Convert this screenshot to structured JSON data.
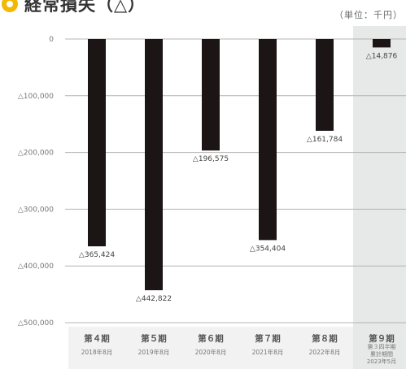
{
  "title": "経常損失（△）",
  "unit": "（単位：千円）",
  "chart_data": {
    "type": "bar",
    "title": "経常損失（△）",
    "unit": "（単位：千円）",
    "ylim": [
      -500000,
      0
    ],
    "yticks": [
      {
        "value": 0,
        "label": "0"
      },
      {
        "value": -100000,
        "label": "△100,000"
      },
      {
        "value": -200000,
        "label": "△200,000"
      },
      {
        "value": -300000,
        "label": "△300,000"
      },
      {
        "value": -400000,
        "label": "△400,000"
      },
      {
        "value": -500000,
        "label": "△500,000"
      }
    ],
    "categories": [
      {
        "label": "第４期",
        "sub": [
          "2018年8月"
        ]
      },
      {
        "label": "第５期",
        "sub": [
          "2019年8月"
        ]
      },
      {
        "label": "第６期",
        "sub": [
          "2020年8月"
        ]
      },
      {
        "label": "第７期",
        "sub": [
          "2021年8月"
        ]
      },
      {
        "label": "第８期",
        "sub": [
          "2022年8月"
        ]
      },
      {
        "label": "第９期",
        "sub": [
          "第３四半期",
          "累計期間",
          "2023年5月"
        ]
      }
    ],
    "values": [
      -365424,
      -442822,
      -196575,
      -354404,
      -161784,
      -14876
    ],
    "value_labels": [
      "△365,424",
      "△442,822",
      "△196,575",
      "△354,404",
      "△161,784",
      "△14,876"
    ],
    "highlight_index": 5,
    "grid": true,
    "colors": {
      "bar": "#1c1516",
      "highlight_band": "#e7e8e8",
      "grid": "#b4b4b4",
      "axis_band": "#f2f2f2",
      "title_dot": "#f5b800"
    }
  }
}
